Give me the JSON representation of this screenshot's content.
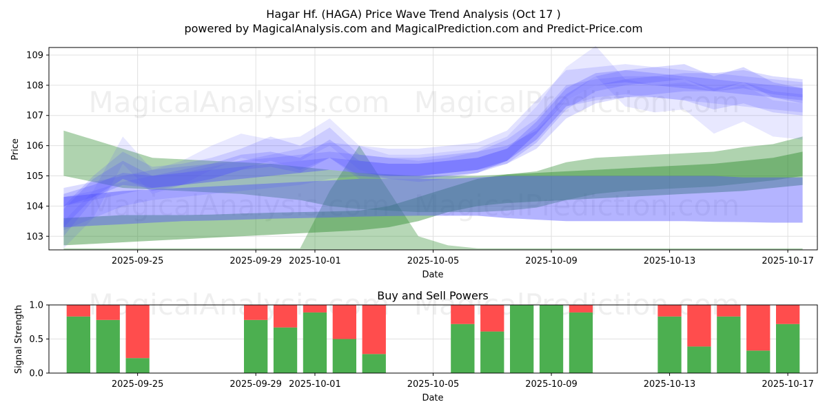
{
  "title_line1": "Hagar Hf. (HAGA) Price Wave Trend Analysis (Oct 17 )",
  "title_line2": "powered by MagicalAnalysis.com and MagicalPrediction.com and Predict-Price.com",
  "watermarks": [
    "MagicalAnalysis.com",
    "MagicalPrediction.com"
  ],
  "colors": {
    "buy": "#4caf50",
    "sell": "#ff4d4d",
    "blue_band": "#4d4dff",
    "green_band": "#2e8b2e",
    "grid": "#e0e0e0"
  },
  "chart_data": [
    {
      "type": "area",
      "title": "",
      "xlabel": "Date",
      "ylabel": "Price",
      "x_start": "2025-09-22",
      "x_end": "2025-10-18",
      "xticks": [
        "2025-09-25",
        "2025-09-29",
        "2025-10-01",
        "2025-10-05",
        "2025-10-09",
        "2025-10-13",
        "2025-10-17"
      ],
      "yticks": [
        103,
        104,
        105,
        106,
        107,
        108,
        109
      ],
      "ylim": [
        102.55,
        109.25
      ],
      "x_days": [
        0.5,
        1.5,
        2.5,
        3.5,
        4.5,
        5.5,
        6.5,
        7.5,
        8.5,
        9.5,
        10.5,
        11.5,
        12.5,
        13.5,
        14.5,
        15.5,
        16.5,
        17.5,
        18.5,
        19.5,
        20.5,
        21.5,
        22.5,
        23.5,
        24.5,
        25.5
      ],
      "green_bands": [
        {
          "name": "green-upper",
          "upper": [
            106.5,
            106.2,
            105.9,
            105.6,
            105.55,
            105.5,
            105.45,
            105.4,
            105.3,
            105.2,
            105.1,
            105.05,
            105.0,
            105.0,
            105.0,
            105.05,
            105.15,
            105.45,
            105.6,
            105.65,
            105.7,
            105.75,
            105.8,
            105.95,
            106.05,
            106.3
          ],
          "lower": [
            105.0,
            104.8,
            104.6,
            104.55,
            104.5,
            104.45,
            104.4,
            104.3,
            104.2,
            104.0,
            103.9,
            103.85,
            103.8,
            103.8,
            103.8,
            103.85,
            103.95,
            104.2,
            104.4,
            104.5,
            104.55,
            104.6,
            104.65,
            104.75,
            104.85,
            105.0
          ],
          "opacity": 0.38
        },
        {
          "name": "green-lower",
          "upper": [
            103.6,
            103.65,
            103.7,
            103.7,
            103.7,
            103.72,
            103.75,
            103.78,
            103.8,
            103.82,
            103.85,
            104.0,
            104.3,
            104.6,
            104.9,
            105.05,
            105.1,
            105.15,
            105.2,
            105.25,
            105.3,
            105.35,
            105.4,
            105.5,
            105.6,
            105.8
          ],
          "lower": [
            102.7,
            102.75,
            102.8,
            102.85,
            102.9,
            102.95,
            103.0,
            103.05,
            103.1,
            103.15,
            103.2,
            103.3,
            103.5,
            103.8,
            104.0,
            104.1,
            104.15,
            104.2,
            104.25,
            104.3,
            104.35,
            104.4,
            104.45,
            104.5,
            104.6,
            104.7
          ],
          "opacity": 0.45
        },
        {
          "name": "green-bump",
          "upper": [
            102.6,
            102.6,
            102.6,
            102.6,
            102.6,
            102.6,
            102.6,
            102.6,
            102.6,
            104.5,
            106.0,
            104.5,
            103.0,
            102.7,
            102.6,
            102.6,
            102.6,
            102.6,
            102.6,
            102.6,
            102.6,
            102.6,
            102.6,
            102.6,
            102.6,
            102.6
          ],
          "lower": [
            102.55,
            102.55,
            102.55,
            102.55,
            102.55,
            102.55,
            102.55,
            102.55,
            102.55,
            102.55,
            102.55,
            102.55,
            102.55,
            102.55,
            102.55,
            102.55,
            102.55,
            102.55,
            102.55,
            102.55,
            102.55,
            102.55,
            102.55,
            102.55,
            102.55,
            102.55
          ],
          "opacity": 0.35
        }
      ],
      "blue_bands": [
        {
          "name": "blue-a",
          "upper": [
            104.3,
            104.5,
            104.8,
            105.0,
            105.1,
            105.3,
            105.5,
            105.7,
            105.9,
            106.1,
            106.0,
            105.9,
            105.9,
            106.0,
            106.1,
            106.5,
            107.5,
            108.5,
            108.6,
            108.7,
            108.6,
            108.5,
            108.4,
            108.3,
            108.2,
            108.1
          ],
          "lower": [
            103.2,
            103.6,
            104.0,
            104.2,
            104.3,
            104.4,
            104.5,
            104.6,
            104.7,
            104.9,
            105.0,
            105.0,
            105.0,
            105.1,
            105.2,
            105.5,
            106.2,
            107.3,
            107.6,
            107.7,
            107.6,
            107.5,
            107.4,
            107.3,
            107.2,
            107.1
          ],
          "opacity": 0.16
        },
        {
          "name": "blue-b",
          "upper": [
            104.0,
            105.0,
            105.8,
            105.3,
            105.4,
            105.6,
            105.9,
            106.3,
            106.0,
            106.6,
            105.7,
            105.6,
            105.5,
            105.6,
            105.8,
            106.2,
            106.9,
            108.0,
            108.2,
            108.3,
            108.3,
            108.2,
            107.9,
            108.1,
            107.8,
            107.7
          ],
          "lower": [
            103.0,
            104.2,
            104.9,
            104.6,
            104.7,
            104.9,
            105.2,
            105.5,
            105.2,
            105.6,
            104.9,
            104.9,
            104.8,
            104.9,
            105.1,
            105.5,
            106.2,
            107.3,
            107.5,
            107.6,
            107.6,
            107.5,
            107.2,
            107.4,
            107.1,
            107.0
          ],
          "opacity": 0.18
        },
        {
          "name": "blue-c",
          "upper": [
            103.5,
            104.5,
            106.3,
            105.2,
            105.5,
            106.0,
            106.4,
            106.2,
            106.3,
            106.9,
            106.0,
            105.7,
            105.7,
            105.8,
            105.9,
            106.3,
            107.3,
            108.6,
            109.3,
            108.2,
            108.0,
            108.1,
            107.8,
            108.0,
            107.5,
            107.4
          ],
          "lower": [
            102.6,
            103.6,
            105.4,
            104.4,
            104.7,
            105.2,
            105.6,
            105.4,
            105.5,
            106.0,
            105.2,
            104.9,
            104.9,
            105.0,
            105.1,
            105.5,
            106.4,
            107.6,
            108.3,
            107.3,
            107.1,
            107.2,
            106.4,
            106.8,
            106.3,
            106.2
          ],
          "opacity": 0.13
        },
        {
          "name": "blue-d",
          "upper": [
            104.6,
            104.8,
            105.0,
            105.2,
            105.3,
            105.4,
            105.5,
            105.6,
            105.7,
            105.8,
            105.7,
            105.6,
            105.6,
            105.7,
            105.8,
            106.0,
            106.5,
            107.5,
            108.0,
            108.2,
            108.3,
            108.4,
            108.4,
            108.5,
            108.3,
            108.2
          ],
          "lower": [
            104.0,
            104.2,
            104.4,
            104.6,
            104.7,
            104.8,
            104.9,
            105.0,
            105.1,
            105.2,
            105.1,
            105.0,
            105.0,
            105.1,
            105.2,
            105.4,
            105.9,
            106.9,
            107.4,
            107.6,
            107.7,
            107.8,
            107.8,
            107.9,
            107.7,
            107.6
          ],
          "opacity": 0.2
        },
        {
          "name": "blue-e",
          "upper": [
            103.9,
            104.9,
            105.5,
            105.0,
            105.2,
            105.4,
            105.7,
            105.8,
            105.6,
            106.2,
            105.5,
            105.4,
            105.4,
            105.5,
            105.6,
            105.9,
            106.6,
            107.7,
            108.3,
            108.5,
            108.6,
            108.7,
            108.3,
            108.6,
            108.1,
            107.9
          ],
          "lower": [
            103.3,
            104.3,
            104.9,
            104.5,
            104.7,
            104.9,
            105.2,
            105.3,
            105.1,
            105.6,
            105.0,
            104.9,
            104.9,
            105.0,
            105.1,
            105.4,
            106.1,
            107.2,
            107.8,
            108.0,
            108.1,
            108.2,
            107.8,
            108.1,
            107.6,
            107.4
          ],
          "opacity": 0.22
        },
        {
          "name": "blue-f",
          "upper": [
            104.4,
            104.7,
            105.1,
            105.0,
            105.1,
            105.2,
            105.3,
            105.4,
            105.5,
            105.6,
            105.5,
            105.4,
            105.4,
            105.5,
            105.6,
            105.9,
            106.8,
            107.9,
            108.4,
            108.5,
            108.4,
            108.3,
            108.2,
            108.1,
            108.0,
            107.9
          ],
          "lower": [
            104.0,
            104.3,
            104.7,
            104.6,
            104.7,
            104.8,
            104.9,
            105.0,
            105.1,
            105.2,
            105.1,
            105.0,
            105.0,
            105.1,
            105.2,
            105.5,
            106.4,
            107.5,
            108.0,
            108.1,
            108.0,
            107.9,
            107.8,
            107.7,
            107.6,
            107.5
          ],
          "opacity": 0.25
        },
        {
          "name": "blue-wide-lower",
          "upper": [
            104.3,
            104.4,
            104.5,
            104.55,
            104.6,
            104.65,
            104.7,
            104.75,
            104.8,
            104.85,
            104.9,
            104.9,
            104.9,
            104.9,
            104.95,
            105.0,
            105.0,
            105.0,
            105.0,
            105.0,
            105.0,
            105.0,
            105.0,
            104.95,
            104.95,
            104.95
          ],
          "lower": [
            103.3,
            103.35,
            103.4,
            103.45,
            103.5,
            103.52,
            103.55,
            103.58,
            103.6,
            103.62,
            103.65,
            103.67,
            103.68,
            103.68,
            103.68,
            103.6,
            103.55,
            103.5,
            103.5,
            103.5,
            103.5,
            103.5,
            103.48,
            103.47,
            103.45,
            103.45
          ],
          "opacity": 0.42
        }
      ]
    },
    {
      "type": "bar",
      "title": "Buy and Sell Powers",
      "xlabel": "Date",
      "ylabel": "Signal Strength",
      "ylim": [
        0.0,
        1.0
      ],
      "yticks": [
        "0.0",
        "0.5",
        "1.0"
      ],
      "xticks": [
        "2025-09-25",
        "2025-09-29",
        "2025-10-01",
        "2025-10-05",
        "2025-10-09",
        "2025-10-13",
        "2025-10-17"
      ],
      "categories": [
        "2025-09-23",
        "2025-09-24",
        "2025-09-25",
        "2025-09-29",
        "2025-09-30",
        "2025-10-01",
        "2025-10-02",
        "2025-10-03",
        "2025-10-06",
        "2025-10-07",
        "2025-10-08",
        "2025-10-09",
        "2025-10-10",
        "2025-10-13",
        "2025-10-14",
        "2025-10-15",
        "2025-10-16",
        "2025-10-17"
      ],
      "series": [
        {
          "name": "Buy",
          "values": [
            0.83,
            0.78,
            0.22,
            0.78,
            0.67,
            0.89,
            0.5,
            0.28,
            0.72,
            0.61,
            1.0,
            1.0,
            0.89,
            0.83,
            0.39,
            0.83,
            0.33,
            0.72
          ]
        },
        {
          "name": "Sell",
          "values": [
            0.17,
            0.22,
            0.78,
            0.22,
            0.33,
            0.11,
            0.5,
            0.72,
            0.28,
            0.39,
            0.0,
            0.0,
            0.11,
            0.17,
            0.61,
            0.17,
            0.67,
            0.28
          ]
        }
      ]
    }
  ]
}
